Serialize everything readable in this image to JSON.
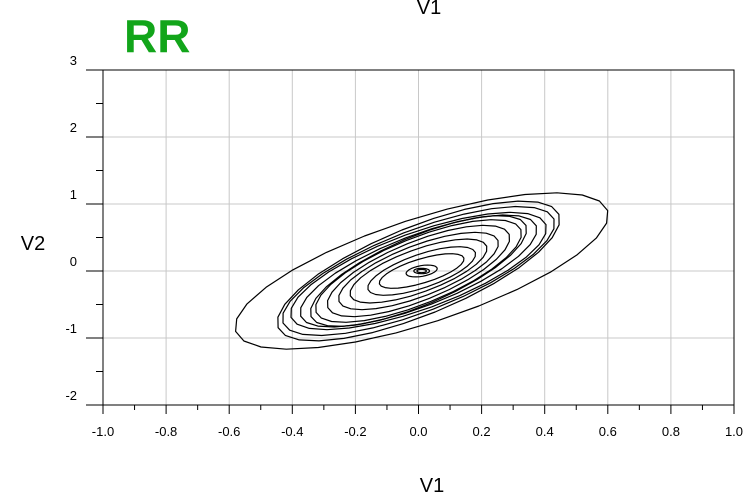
{
  "logo": {
    "text": "RR",
    "color": "#12a51a"
  },
  "chart_data": {
    "type": "contour",
    "top_label": "V1",
    "xlabel": "V1",
    "ylabel": "V2",
    "xlim": [
      -1.0,
      1.0
    ],
    "ylim": [
      -2,
      3
    ],
    "x_ticks": [
      "-1.0",
      "-0.8",
      "-0.6",
      "-0.4",
      "-0.2",
      "0.0",
      "0.2",
      "0.4",
      "0.6",
      "0.8",
      "1.0"
    ],
    "y_ticks": [
      "-2",
      "-1",
      "0",
      "1",
      "2",
      "3"
    ],
    "grid": true,
    "line_color": "#000000",
    "grid_color": "#c8c8c8",
    "contours": [
      {
        "center": [
          0.01,
          0.0
        ],
        "semi_major": 0.62,
        "semi_minor": 0.78,
        "angle_deg": 18
      },
      {
        "center": [
          0.0,
          0.0
        ],
        "semi_major": 0.48,
        "semi_minor": 0.66,
        "angle_deg": 22
      },
      {
        "center": [
          0.0,
          0.0
        ],
        "semi_major": 0.46,
        "semi_minor": 0.61,
        "angle_deg": 21
      },
      {
        "center": [
          0.0,
          0.0
        ],
        "semi_major": 0.43,
        "semi_minor": 0.57,
        "angle_deg": 20
      },
      {
        "center": [
          0.0,
          0.0
        ],
        "semi_major": 0.4,
        "semi_minor": 0.53,
        "angle_deg": 21
      },
      {
        "center": [
          0.0,
          0.0
        ],
        "semi_major": 0.37,
        "semi_minor": 0.51,
        "angle_deg": 23
      },
      {
        "center": [
          0.0,
          0.0
        ],
        "semi_major": 0.35,
        "semi_minor": 0.49,
        "angle_deg": 22
      },
      {
        "center": [
          0.0,
          0.0
        ],
        "semi_major": 0.31,
        "semi_minor": 0.44,
        "angle_deg": 22
      },
      {
        "center": [
          0.0,
          0.0
        ],
        "semi_major": 0.27,
        "semi_minor": 0.38,
        "angle_deg": 21
      },
      {
        "center": [
          0.0,
          0.0
        ],
        "semi_major": 0.23,
        "semi_minor": 0.32,
        "angle_deg": 20
      },
      {
        "center": [
          0.01,
          0.0
        ],
        "semi_major": 0.18,
        "semi_minor": 0.25,
        "angle_deg": 19
      },
      {
        "center": [
          0.01,
          0.0
        ],
        "semi_major": 0.14,
        "semi_minor": 0.18,
        "angle_deg": 17
      },
      {
        "center": [
          0.01,
          0.0
        ],
        "semi_major": 0.05,
        "semi_minor": 0.08,
        "angle_deg": 10
      },
      {
        "center": [
          0.01,
          0.0
        ],
        "semi_major": 0.025,
        "semi_minor": 0.04,
        "angle_deg": 0
      },
      {
        "center": [
          0.01,
          0.0
        ],
        "semi_major": 0.015,
        "semi_minor": 0.025,
        "angle_deg": 0
      }
    ]
  }
}
